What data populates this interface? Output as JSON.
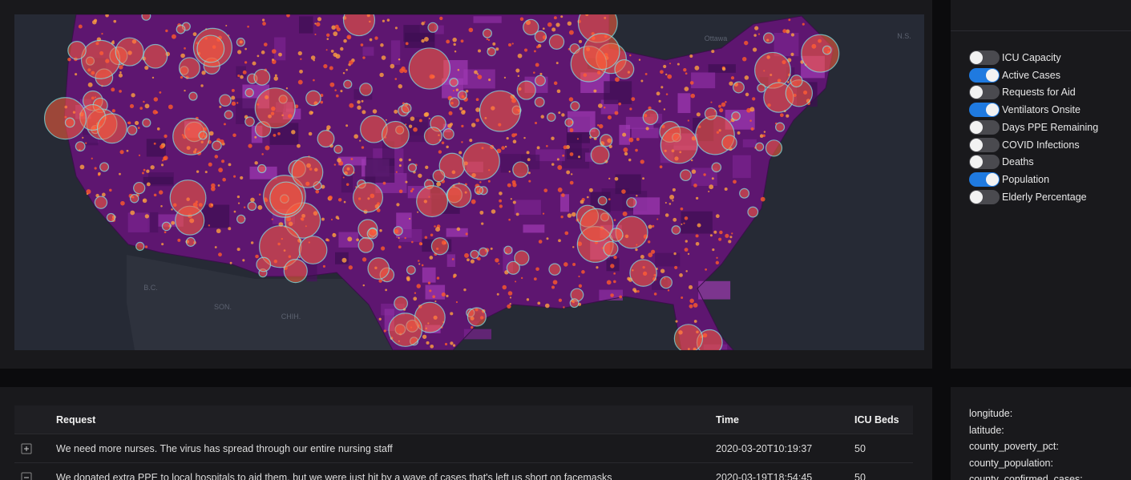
{
  "map": {
    "labels": [
      "B.C.",
      "SON.",
      "CHIH.",
      "Ottawa",
      "N.S."
    ]
  },
  "layers": [
    {
      "name": "ICU Capacity",
      "on": false
    },
    {
      "name": "Active Cases",
      "on": true
    },
    {
      "name": "Requests for Aid",
      "on": false
    },
    {
      "name": "Ventilators Onsite",
      "on": true
    },
    {
      "name": "Days PPE Remaining",
      "on": false
    },
    {
      "name": "COVID Infections",
      "on": false
    },
    {
      "name": "Deaths",
      "on": false
    },
    {
      "name": "Population",
      "on": true
    },
    {
      "name": "Elderly Percentage",
      "on": false
    }
  ],
  "table": {
    "columns": [
      "Request",
      "Time",
      "ICU Beds"
    ],
    "rows": [
      [
        "We need more nurses. The virus has spread through our entire nursing staff",
        "2020-03-20T10:19:37",
        50
      ],
      [
        "We donated extra PPE to local hospitals to aid them, but we were just hit by a wave of cases that's left us short on facemasks",
        "2020-03-19T18:54:45",
        50
      ]
    ]
  },
  "details": [
    "longitude:",
    "latitude:",
    "county_poverty_pct:",
    "county_population:",
    "county_confirmed_cases:"
  ]
}
